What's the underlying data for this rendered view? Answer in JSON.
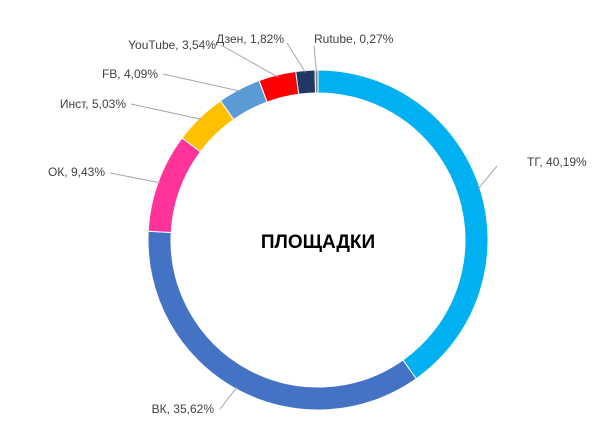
{
  "chart_data": {
    "type": "pie",
    "variant": "donut",
    "center_label": "ПЛОЩАДКИ",
    "legend": "none",
    "start": "top",
    "direction": "clockwise",
    "slices": [
      {
        "name": "ТГ",
        "value": 40.19,
        "label": "ТГ, 40,19%",
        "color": "#00b0f0"
      },
      {
        "name": "ВК",
        "value": 35.62,
        "label": "ВК, 35,62%",
        "color": "#4472c4"
      },
      {
        "name": "ОК",
        "value": 9.43,
        "label": "ОК, 9,43%",
        "color": "#ff3399"
      },
      {
        "name": "Инст",
        "value": 5.03,
        "label": "Инст, 5,03%",
        "color": "#ffc000"
      },
      {
        "name": "FB",
        "value": 4.09,
        "label": "FB, 4,09%",
        "color": "#5b9bd5"
      },
      {
        "name": "YouTube",
        "value": 3.54,
        "label": "YouTube, 3,54%",
        "color": "#ff0000"
      },
      {
        "name": "Дзен",
        "value": 1.82,
        "label": "Дзен, 1,82%",
        "color": "#1f3864"
      },
      {
        "name": "Rutube",
        "value": 0.27,
        "label": "Rutube, 0,27%",
        "color": "#7f7f7f"
      }
    ]
  }
}
